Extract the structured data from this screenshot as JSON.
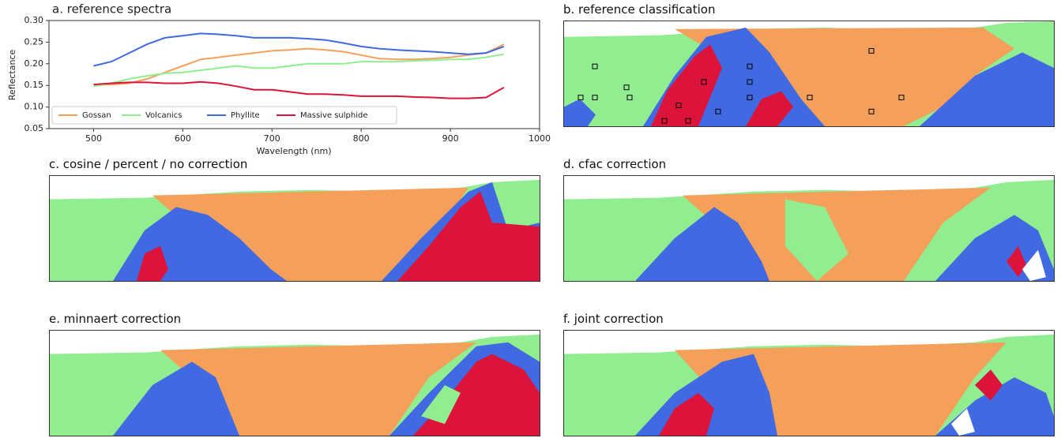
{
  "chart_data": {
    "type": "line",
    "title": "a. reference spectra",
    "xlabel": "Wavelength (nm)",
    "ylabel": "Reflectance",
    "x": [
      500,
      520,
      540,
      560,
      580,
      600,
      620,
      640,
      660,
      680,
      700,
      720,
      740,
      760,
      780,
      800,
      820,
      840,
      860,
      880,
      900,
      920,
      940,
      960
    ],
    "series": [
      {
        "name": "Gossan",
        "color": "#f4a05a",
        "values": [
          0.15,
          0.152,
          0.155,
          0.165,
          0.18,
          0.195,
          0.21,
          0.215,
          0.22,
          0.225,
          0.23,
          0.232,
          0.235,
          0.232,
          0.228,
          0.22,
          0.212,
          0.21,
          0.21,
          0.212,
          0.215,
          0.22,
          0.225,
          0.245
        ]
      },
      {
        "name": "Volcanics",
        "color": "#90ee90",
        "values": [
          0.148,
          0.155,
          0.165,
          0.172,
          0.178,
          0.18,
          0.185,
          0.19,
          0.195,
          0.19,
          0.19,
          0.195,
          0.2,
          0.2,
          0.2,
          0.205,
          0.205,
          0.205,
          0.207,
          0.208,
          0.21,
          0.21,
          0.215,
          0.222
        ]
      },
      {
        "name": "Phyllite",
        "color": "#4169e1",
        "values": [
          0.195,
          0.205,
          0.225,
          0.245,
          0.26,
          0.265,
          0.27,
          0.268,
          0.265,
          0.26,
          0.26,
          0.26,
          0.258,
          0.255,
          0.248,
          0.24,
          0.235,
          0.232,
          0.23,
          0.228,
          0.225,
          0.222,
          0.225,
          0.24
        ]
      },
      {
        "name": "Massive sulphide",
        "color": "#dc143c",
        "values": [
          0.152,
          0.155,
          0.157,
          0.157,
          0.155,
          0.155,
          0.158,
          0.155,
          0.148,
          0.14,
          0.14,
          0.135,
          0.13,
          0.13,
          0.128,
          0.125,
          0.125,
          0.125,
          0.123,
          0.122,
          0.12,
          0.12,
          0.122,
          0.145
        ]
      }
    ],
    "xlim": [
      450,
      1000
    ],
    "xticks": [
      500,
      600,
      700,
      800,
      900,
      1000
    ],
    "ylim": [
      0.05,
      0.3
    ],
    "yticks": [
      0.05,
      {
        "value": 0.1,
        "label": "0.10"
      },
      0.15,
      {
        "value": 0.2,
        "label": "0.20"
      },
      0.25,
      {
        "value": 0.3,
        "label": "0.30"
      }
    ],
    "legend": "lower left",
    "grid": false
  },
  "panels": [
    {
      "title": "b. reference classification"
    },
    {
      "title": "c. cosine / percent / no correction"
    },
    {
      "title": "d. cfac correction"
    },
    {
      "title": "e. minnaert correction"
    },
    {
      "title": "f. joint correction"
    }
  ]
}
